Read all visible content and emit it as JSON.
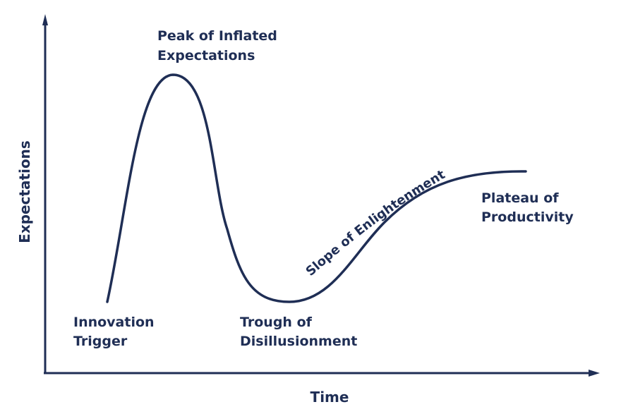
{
  "diagram": {
    "colors": {
      "ink": "#1f2e55",
      "background": "#ffffff"
    },
    "axes": {
      "x_label": "Time",
      "y_label": "Expectations"
    },
    "phases": {
      "innovation_trigger": [
        "Innovation",
        "Trigger"
      ],
      "peak": [
        "Peak of Inflated",
        "Expectations"
      ],
      "trough": [
        "Trough of",
        "Disillusionment"
      ],
      "slope": "Slope of Enlightenment",
      "plateau": [
        "Plateau of",
        "Productivity"
      ]
    }
  }
}
